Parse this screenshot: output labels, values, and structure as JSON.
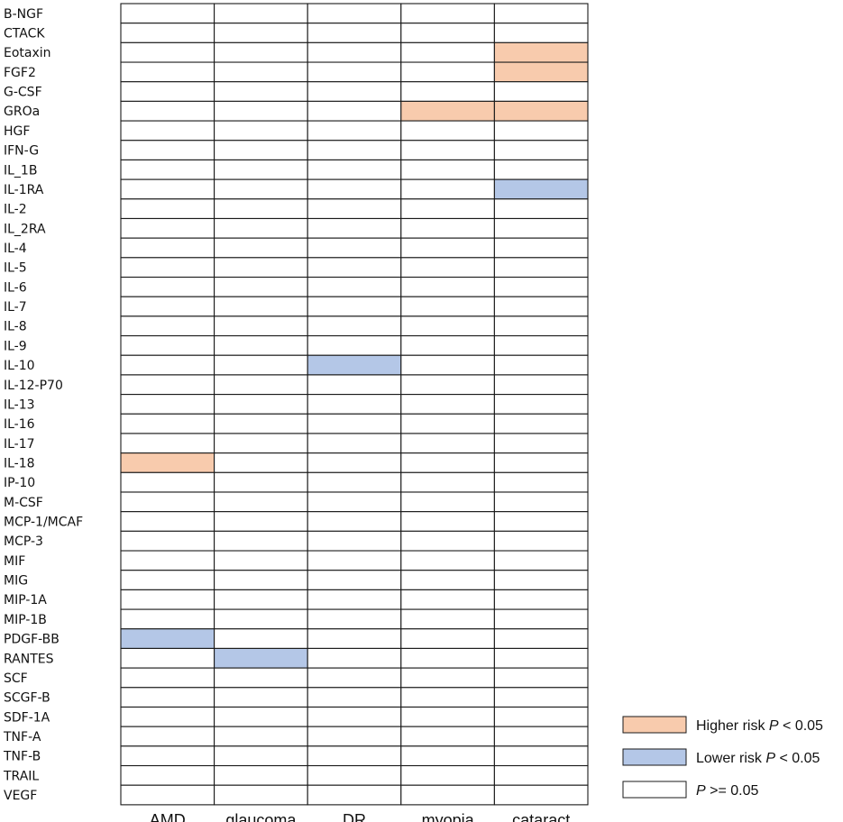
{
  "chart_data": {
    "type": "heatmap",
    "rows": [
      "B-NGF",
      "CTACK",
      "Eotaxin",
      "FGF2",
      "G-CSF",
      "GROa",
      "HGF",
      "IFN-G",
      "IL_1B",
      "IL-1RA",
      "IL-2",
      "IL_2RA",
      "IL-4",
      "IL-5",
      "IL-6",
      "IL-7",
      "IL-8",
      "IL-9",
      "IL-10",
      "IL-12-P70",
      "IL-13",
      "IL-16",
      "IL-17",
      "IL-18",
      "IP-10",
      "M-CSF",
      "MCP-1/MCAF",
      "MCP-3",
      "MIF",
      "MIG",
      "MIP-1A",
      "MIP-1B",
      "PDGF-BB",
      "RANTES",
      "SCF",
      "SCGF-B",
      "SDF-1A",
      "TNF-A",
      "TNF-B",
      "TRAIL",
      "VEGF"
    ],
    "columns": [
      "AMD",
      "glaucoma",
      "DR",
      "myopia",
      "cataract"
    ],
    "cells": [
      {
        "row": "Eotaxin",
        "column": "cataract",
        "status": "higher"
      },
      {
        "row": "FGF2",
        "column": "cataract",
        "status": "higher"
      },
      {
        "row": "GROa",
        "column": "myopia",
        "status": "higher"
      },
      {
        "row": "GROa",
        "column": "cataract",
        "status": "higher"
      },
      {
        "row": "IL-1RA",
        "column": "cataract",
        "status": "lower"
      },
      {
        "row": "IL-10",
        "column": "DR",
        "status": "lower"
      },
      {
        "row": "IL-18",
        "column": "AMD",
        "status": "higher"
      },
      {
        "row": "PDGF-BB",
        "column": "AMD",
        "status": "lower"
      },
      {
        "row": "RANTES",
        "column": "glaucoma",
        "status": "lower"
      }
    ],
    "default_status": "ns",
    "legend": [
      {
        "status": "higher",
        "label": "Higher risk",
        "p_symbol": "P",
        "condition": " < 0.05",
        "color": "#f8cbad"
      },
      {
        "status": "lower",
        "label": "Lower risk",
        "p_symbol": "P",
        "condition": " < 0.05",
        "color": "#b4c7e7"
      },
      {
        "status": "ns",
        "label": "",
        "p_symbol": "P",
        "condition": " >= 0.05",
        "color": "#ffffff"
      }
    ],
    "legend_position": "bottom-right",
    "grid": true
  }
}
